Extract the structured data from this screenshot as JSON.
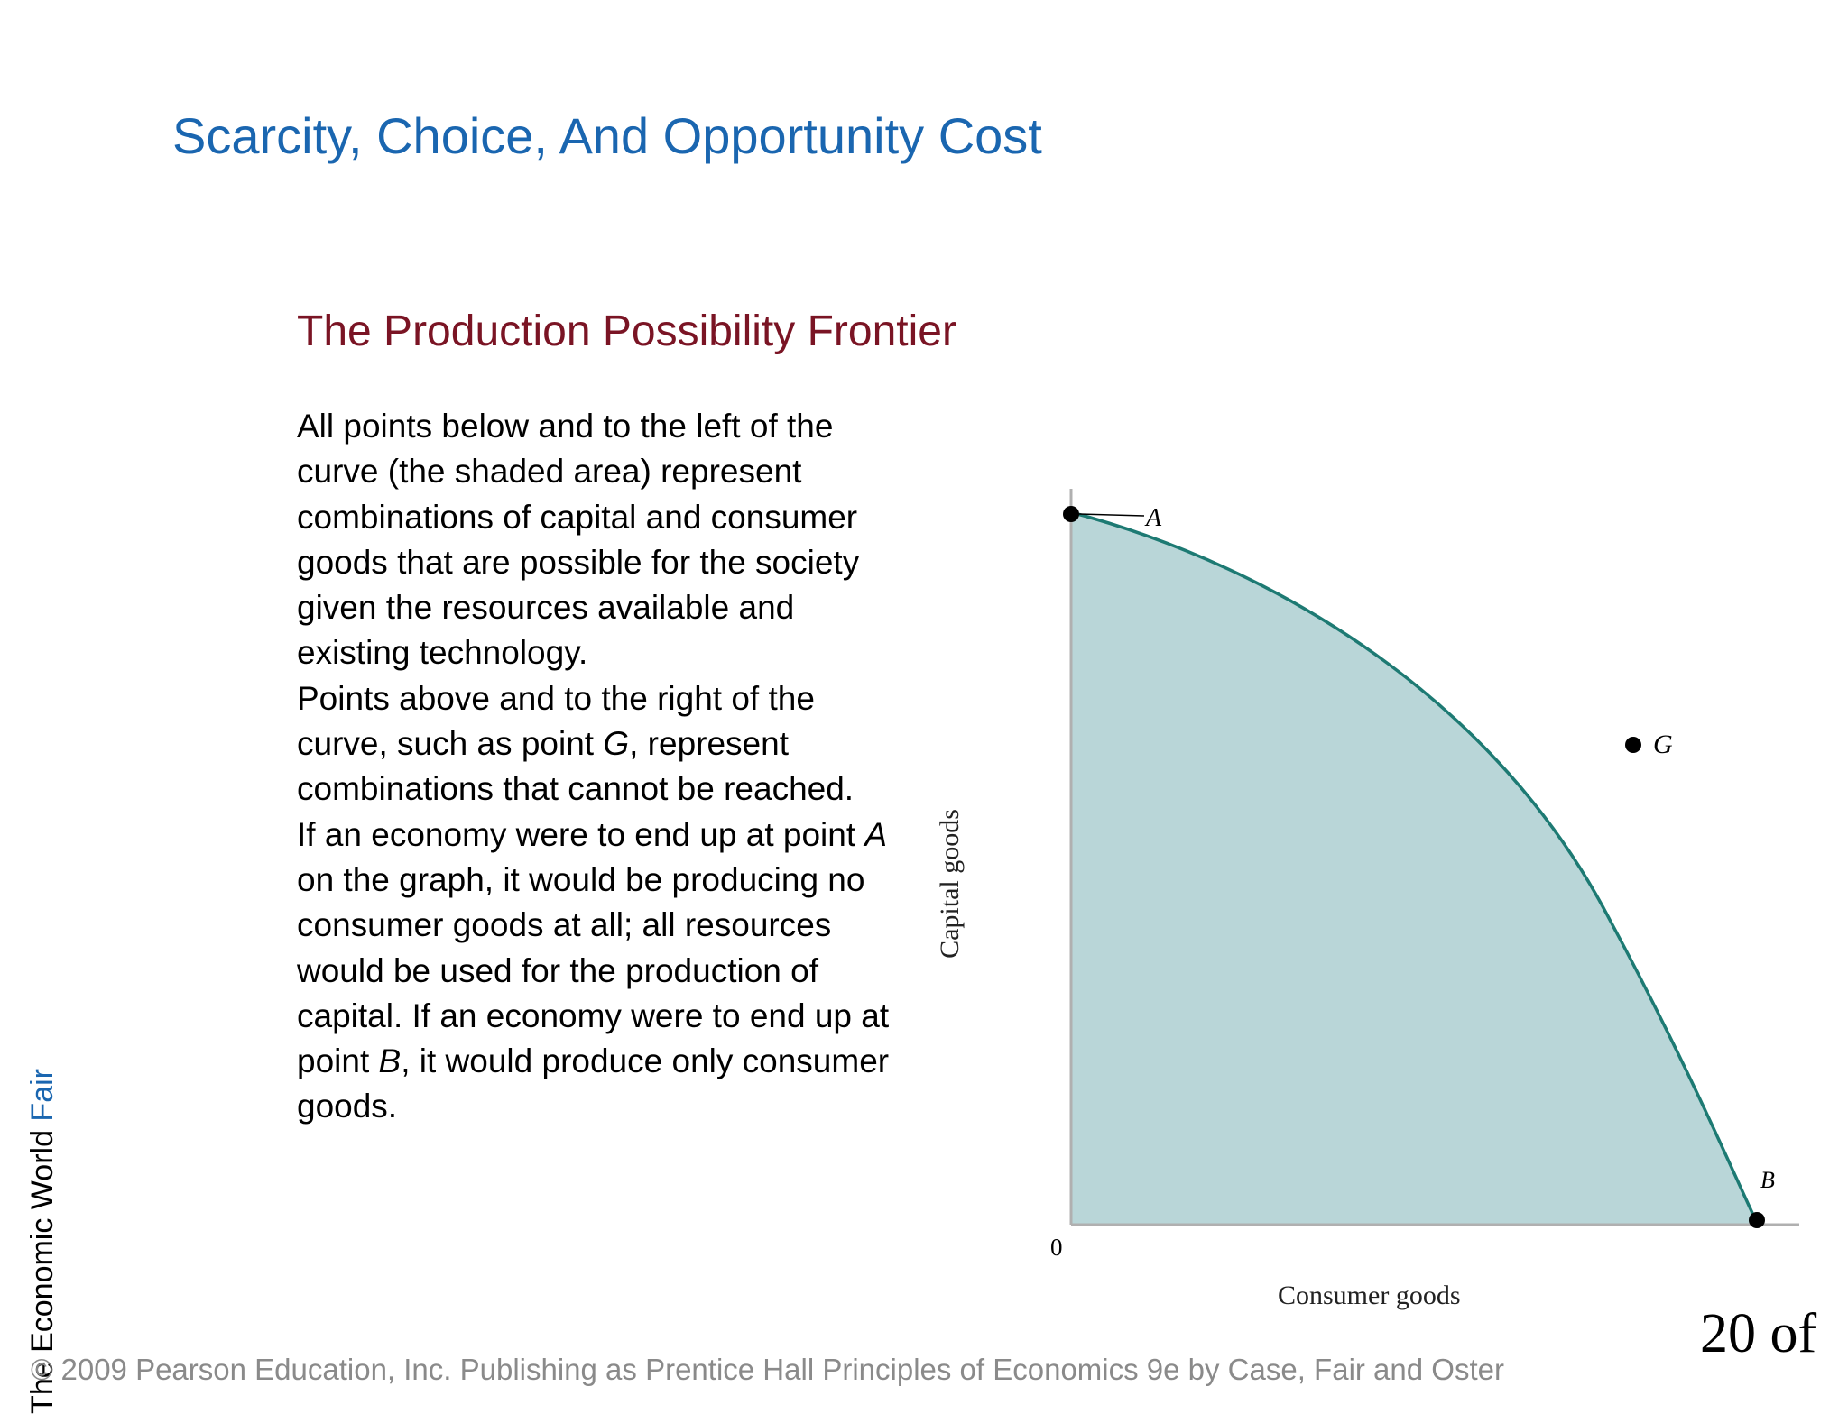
{
  "slide": {
    "title": "Scarcity, Choice, And Opportunity Cost",
    "section_title": "The Production Possibility Frontier",
    "paragraphs": {
      "p1": "All points below and to the left of the curve (the shaded area) represent combinations of capital and consumer goods that are possible for the society given the resources available and existing technology.",
      "p2_before": "Points above and to the right of the curve, such as point ",
      "p2_em": "G",
      "p2_after": ", represent combinations that cannot be reached.",
      "p3_a": "If an economy were to end up at point ",
      "p3_em1": "A",
      "p3_b": " on the graph, it would be producing no consumer goods at all; all resources would be used for the production of capital. If an economy were to end up at point ",
      "p3_em2": "B",
      "p3_c": ", it would produce only consumer goods."
    }
  },
  "chart_data": {
    "type": "line",
    "xlabel": "Consumer goods",
    "ylabel": "Capital goods",
    "origin_label": "0",
    "points": {
      "A": "A",
      "B": "B",
      "G": "G"
    },
    "colors": {
      "curve": "#1d7a73",
      "fill": "#b9d6d8",
      "axis": "#b0b0b0",
      "point": "#000000"
    }
  },
  "side_text": {
    "text": "The Economic World",
    "accent": "Fair"
  },
  "footer": {
    "copyright": "© 2009 Pearson Education, Inc. Publishing as Prentice Hall   Principles of Economics 9e by Case, Fair and Oster"
  },
  "page": {
    "number": "20 of"
  }
}
